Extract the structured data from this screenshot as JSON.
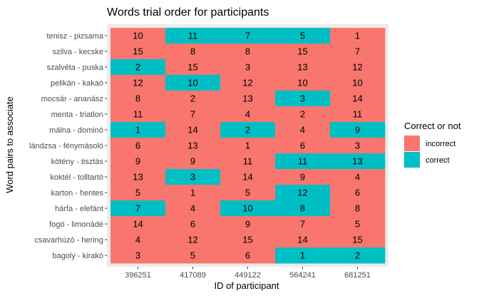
{
  "chart_data": {
    "type": "heatmap",
    "title": "Words trial order for participants",
    "xlabel": "ID of participant",
    "ylabel": "Word pairs to associate",
    "x": [
      "396251",
      "417089",
      "449122",
      "564241",
      "681251"
    ],
    "y": [
      "tenisz - pizsama",
      "szilva - kecske",
      "szalvéta - puska",
      "pelikán - kakaó",
      "mocsár - ananász",
      "menta - triatlon",
      "málna - dominó",
      "lándzsa - fénymásoló",
      "kötény - tisztás",
      "koktél - tolltartó",
      "karton - hentes",
      "hárfa - elefánt",
      "fogó - limonádé",
      "csavarhúzó - hering",
      "bagoly - kirakó"
    ],
    "values": [
      [
        10,
        11,
        7,
        5,
        1
      ],
      [
        15,
        8,
        8,
        15,
        7
      ],
      [
        2,
        15,
        3,
        13,
        12
      ],
      [
        12,
        10,
        12,
        10,
        10
      ],
      [
        8,
        2,
        13,
        3,
        14
      ],
      [
        11,
        7,
        4,
        2,
        11
      ],
      [
        1,
        14,
        2,
        4,
        9
      ],
      [
        6,
        13,
        1,
        6,
        3
      ],
      [
        9,
        9,
        11,
        11,
        13
      ],
      [
        13,
        3,
        14,
        9,
        4
      ],
      [
        5,
        1,
        5,
        12,
        6
      ],
      [
        7,
        4,
        10,
        8,
        8
      ],
      [
        14,
        6,
        9,
        7,
        5
      ],
      [
        4,
        12,
        15,
        14,
        15
      ],
      [
        3,
        5,
        6,
        1,
        2
      ]
    ],
    "fill": [
      [
        "incorrect",
        "correct",
        "correct",
        "correct",
        "incorrect"
      ],
      [
        "incorrect",
        "incorrect",
        "incorrect",
        "incorrect",
        "incorrect"
      ],
      [
        "correct",
        "incorrect",
        "incorrect",
        "incorrect",
        "incorrect"
      ],
      [
        "incorrect",
        "correct",
        "incorrect",
        "incorrect",
        "incorrect"
      ],
      [
        "incorrect",
        "incorrect",
        "incorrect",
        "correct",
        "incorrect"
      ],
      [
        "incorrect",
        "incorrect",
        "incorrect",
        "incorrect",
        "incorrect"
      ],
      [
        "correct",
        "incorrect",
        "correct",
        "incorrect",
        "correct"
      ],
      [
        "incorrect",
        "incorrect",
        "incorrect",
        "incorrect",
        "incorrect"
      ],
      [
        "incorrect",
        "incorrect",
        "incorrect",
        "correct",
        "correct"
      ],
      [
        "incorrect",
        "correct",
        "incorrect",
        "incorrect",
        "incorrect"
      ],
      [
        "incorrect",
        "incorrect",
        "incorrect",
        "correct",
        "incorrect"
      ],
      [
        "correct",
        "incorrect",
        "correct",
        "correct",
        "incorrect"
      ],
      [
        "incorrect",
        "incorrect",
        "incorrect",
        "incorrect",
        "incorrect"
      ],
      [
        "incorrect",
        "incorrect",
        "incorrect",
        "incorrect",
        "incorrect"
      ],
      [
        "incorrect",
        "incorrect",
        "incorrect",
        "correct",
        "correct"
      ]
    ],
    "legend": {
      "title": "Correct or not",
      "placement": "right",
      "entries": [
        {
          "key": "incorrect",
          "label": "incorrect",
          "color": "#F8766D"
        },
        {
          "key": "correct",
          "label": "correct",
          "color": "#00BFC4"
        }
      ]
    },
    "panel_background": "#EBEBEB",
    "grid": false
  }
}
